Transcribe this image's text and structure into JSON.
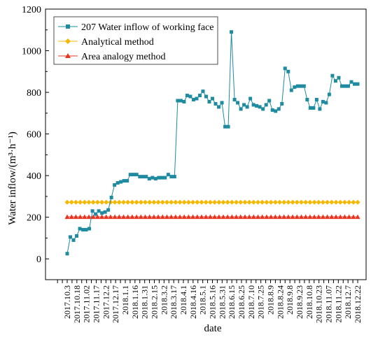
{
  "chart_data": {
    "type": "line",
    "xlabel": "date",
    "ylabel": "Water inflow/(m³·h⁻¹)",
    "ylim": [
      -100,
      1200
    ],
    "yticks": [
      0,
      200,
      400,
      600,
      800,
      1000,
      1200
    ],
    "grid": false,
    "legend_position": "top-left",
    "x_tick_labels": [
      "2017.10.3",
      "2017.10.18",
      "2017.11.02",
      "2017.11.17",
      "2017.12.2",
      "2017.12.17",
      "2018.1.1",
      "2018.1.16",
      "2018.1.31",
      "2018.2.15",
      "2018.3.2",
      "2018.3.17",
      "2018.4.1",
      "2018.4.16",
      "2018.5.1",
      "2018.5.16",
      "2018.5.31",
      "2018.6.15",
      "2018.6.25",
      "2018.7.10",
      "2018.7.25",
      "2018.8.9",
      "2018.8.24",
      "2018.9.8",
      "2018.9.23",
      "2018.10.8",
      "2018.10.23",
      "2018.11.07",
      "2018.11.22",
      "2018.12.7",
      "2018.12.22"
    ],
    "series": [
      {
        "name": "207 Water inflow of working face",
        "color": "#1f8ba0",
        "marker": "square",
        "values": [
          25,
          105,
          90,
          110,
          145,
          140,
          140,
          145,
          230,
          215,
          230,
          220,
          225,
          235,
          295,
          355,
          365,
          370,
          375,
          375,
          405,
          405,
          405,
          395,
          395,
          395,
          385,
          390,
          385,
          390,
          390,
          390,
          405,
          395,
          395,
          760,
          760,
          755,
          785,
          780,
          765,
          770,
          785,
          805,
          780,
          755,
          770,
          745,
          730,
          750,
          635,
          635,
          1090,
          765,
          750,
          720,
          740,
          730,
          770,
          740,
          735,
          730,
          720,
          740,
          760,
          715,
          710,
          720,
          745,
          915,
          900,
          810,
          825,
          830,
          830,
          830,
          765,
          725,
          725,
          765,
          720,
          755,
          750,
          790,
          880,
          855,
          870,
          830,
          830,
          830,
          850,
          840,
          840
        ]
      },
      {
        "name": "Analytical method",
        "color": "#f5b800",
        "marker": "diamond",
        "value": 272
      },
      {
        "name": "Area analogy method",
        "color": "#e8331e",
        "marker": "triangle",
        "value": 202
      }
    ]
  }
}
